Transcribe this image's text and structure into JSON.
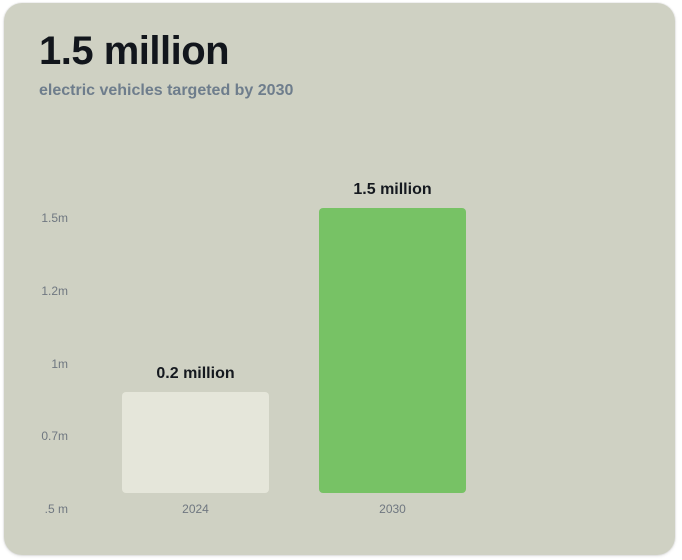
{
  "header": {
    "headline": "1.5 million",
    "subhead": "electric vehicles targeted by 2030"
  },
  "colors": {
    "background": "#cfd1c3",
    "bar_2024": "#e5e6da",
    "bar_2030": "#77c265",
    "headline": "#12161c",
    "subhead": "#6e7d8c"
  },
  "chart_data": {
    "type": "bar",
    "categories": [
      "2024",
      "2030"
    ],
    "values": [
      0.2,
      1.5
    ],
    "data_labels": [
      "0.2 million",
      "1.5 million"
    ],
    "y_ticks": [
      ".5 m",
      "0.7m",
      "1m",
      "1.2m",
      "1.5m"
    ],
    "grid": false,
    "title": "",
    "xlabel": "",
    "ylabel": ""
  }
}
